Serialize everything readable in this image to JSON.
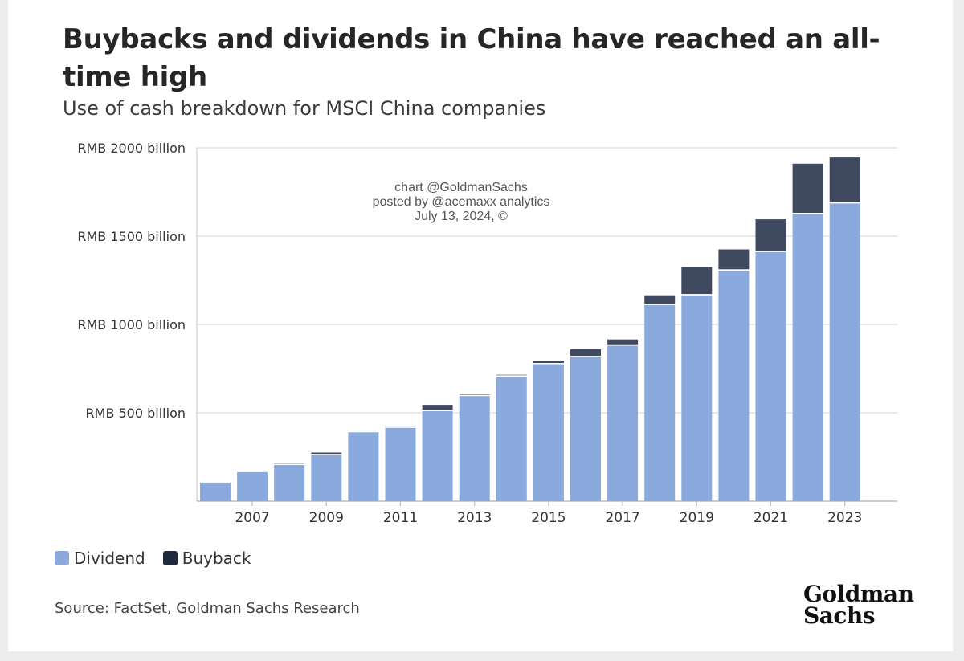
{
  "header": {
    "title": "Buybacks and dividends in China have reached an all-time high",
    "subtitle": "Use of cash breakdown for MSCI China companies"
  },
  "watermark": {
    "line1": "chart @GoldmanSachs",
    "line2": "posted by @acemaxx analytics",
    "line3": "July 13, 2024, ©"
  },
  "legend": {
    "dividend": "Dividend",
    "buyback": "Buyback"
  },
  "footer": {
    "source": "Source: FactSet, Goldman Sachs Research",
    "logo_line1": "Goldman",
    "logo_line2": "Sachs"
  },
  "colors": {
    "dividend": "#8aa9dc",
    "buyback": "#3f4a60",
    "legend_buyback": "#1f2a3f",
    "grid": "#dcdcdc"
  },
  "chart_data": {
    "type": "bar",
    "stacked": true,
    "x": [
      2006,
      2007,
      2008,
      2009,
      2010,
      2011,
      2012,
      2013,
      2014,
      2015,
      2016,
      2017,
      2018,
      2019,
      2020,
      2021,
      2022,
      2023
    ],
    "x_tick_labels": [
      "2007",
      "2009",
      "2011",
      "2013",
      "2015",
      "2017",
      "2019",
      "2021",
      "2023"
    ],
    "x_tick_values": [
      2007,
      2009,
      2011,
      2013,
      2015,
      2017,
      2019,
      2021,
      2023
    ],
    "y_ticks": [
      {
        "value": 500,
        "label": "RMB 500 billion"
      },
      {
        "value": 1000,
        "label": "RMB 1000 billion"
      },
      {
        "value": 1500,
        "label": "RMB 1500 billion"
      },
      {
        "value": 2000,
        "label": "RMB 2000 billion"
      }
    ],
    "ylim": [
      0,
      2000
    ],
    "grid": true,
    "legend_placement": "bottom-left",
    "series": [
      {
        "name": "Dividend",
        "values": [
          105,
          165,
          205,
          260,
          390,
          415,
          510,
          595,
          705,
          775,
          815,
          880,
          1110,
          1165,
          1305,
          1410,
          1625,
          1685
        ]
      },
      {
        "name": "Buyback",
        "values": [
          0,
          5,
          10,
          15,
          5,
          10,
          35,
          10,
          10,
          20,
          45,
          35,
          55,
          160,
          120,
          185,
          285,
          260
        ]
      }
    ]
  }
}
